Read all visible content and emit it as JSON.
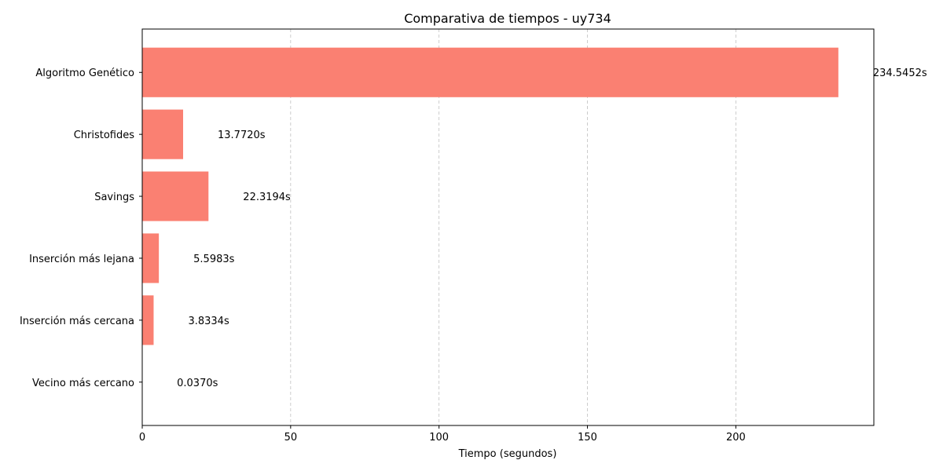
{
  "chart_data": {
    "type": "bar",
    "orientation": "horizontal",
    "title": "Comparativa de tiempos - uy734",
    "xlabel": "Tiempo (segundos)",
    "ylabel": "",
    "xlim": [
      0,
      246.5
    ],
    "xticks": [
      0,
      50,
      100,
      150,
      200
    ],
    "grid": "x-dashed",
    "bar_color": "#fa8072",
    "categories": [
      "Algoritmo Genético",
      "Christofides",
      "Savings",
      "Inserción más lejana",
      "Inserción más cercana",
      "Vecino más cercano"
    ],
    "values": [
      234.5452,
      13.772,
      22.3194,
      5.5983,
      3.8334,
      0.037
    ],
    "value_labels": [
      "234.5452s",
      "13.7720s",
      "22.3194s",
      "5.5983s",
      "3.8334s",
      "0.0370s"
    ]
  }
}
